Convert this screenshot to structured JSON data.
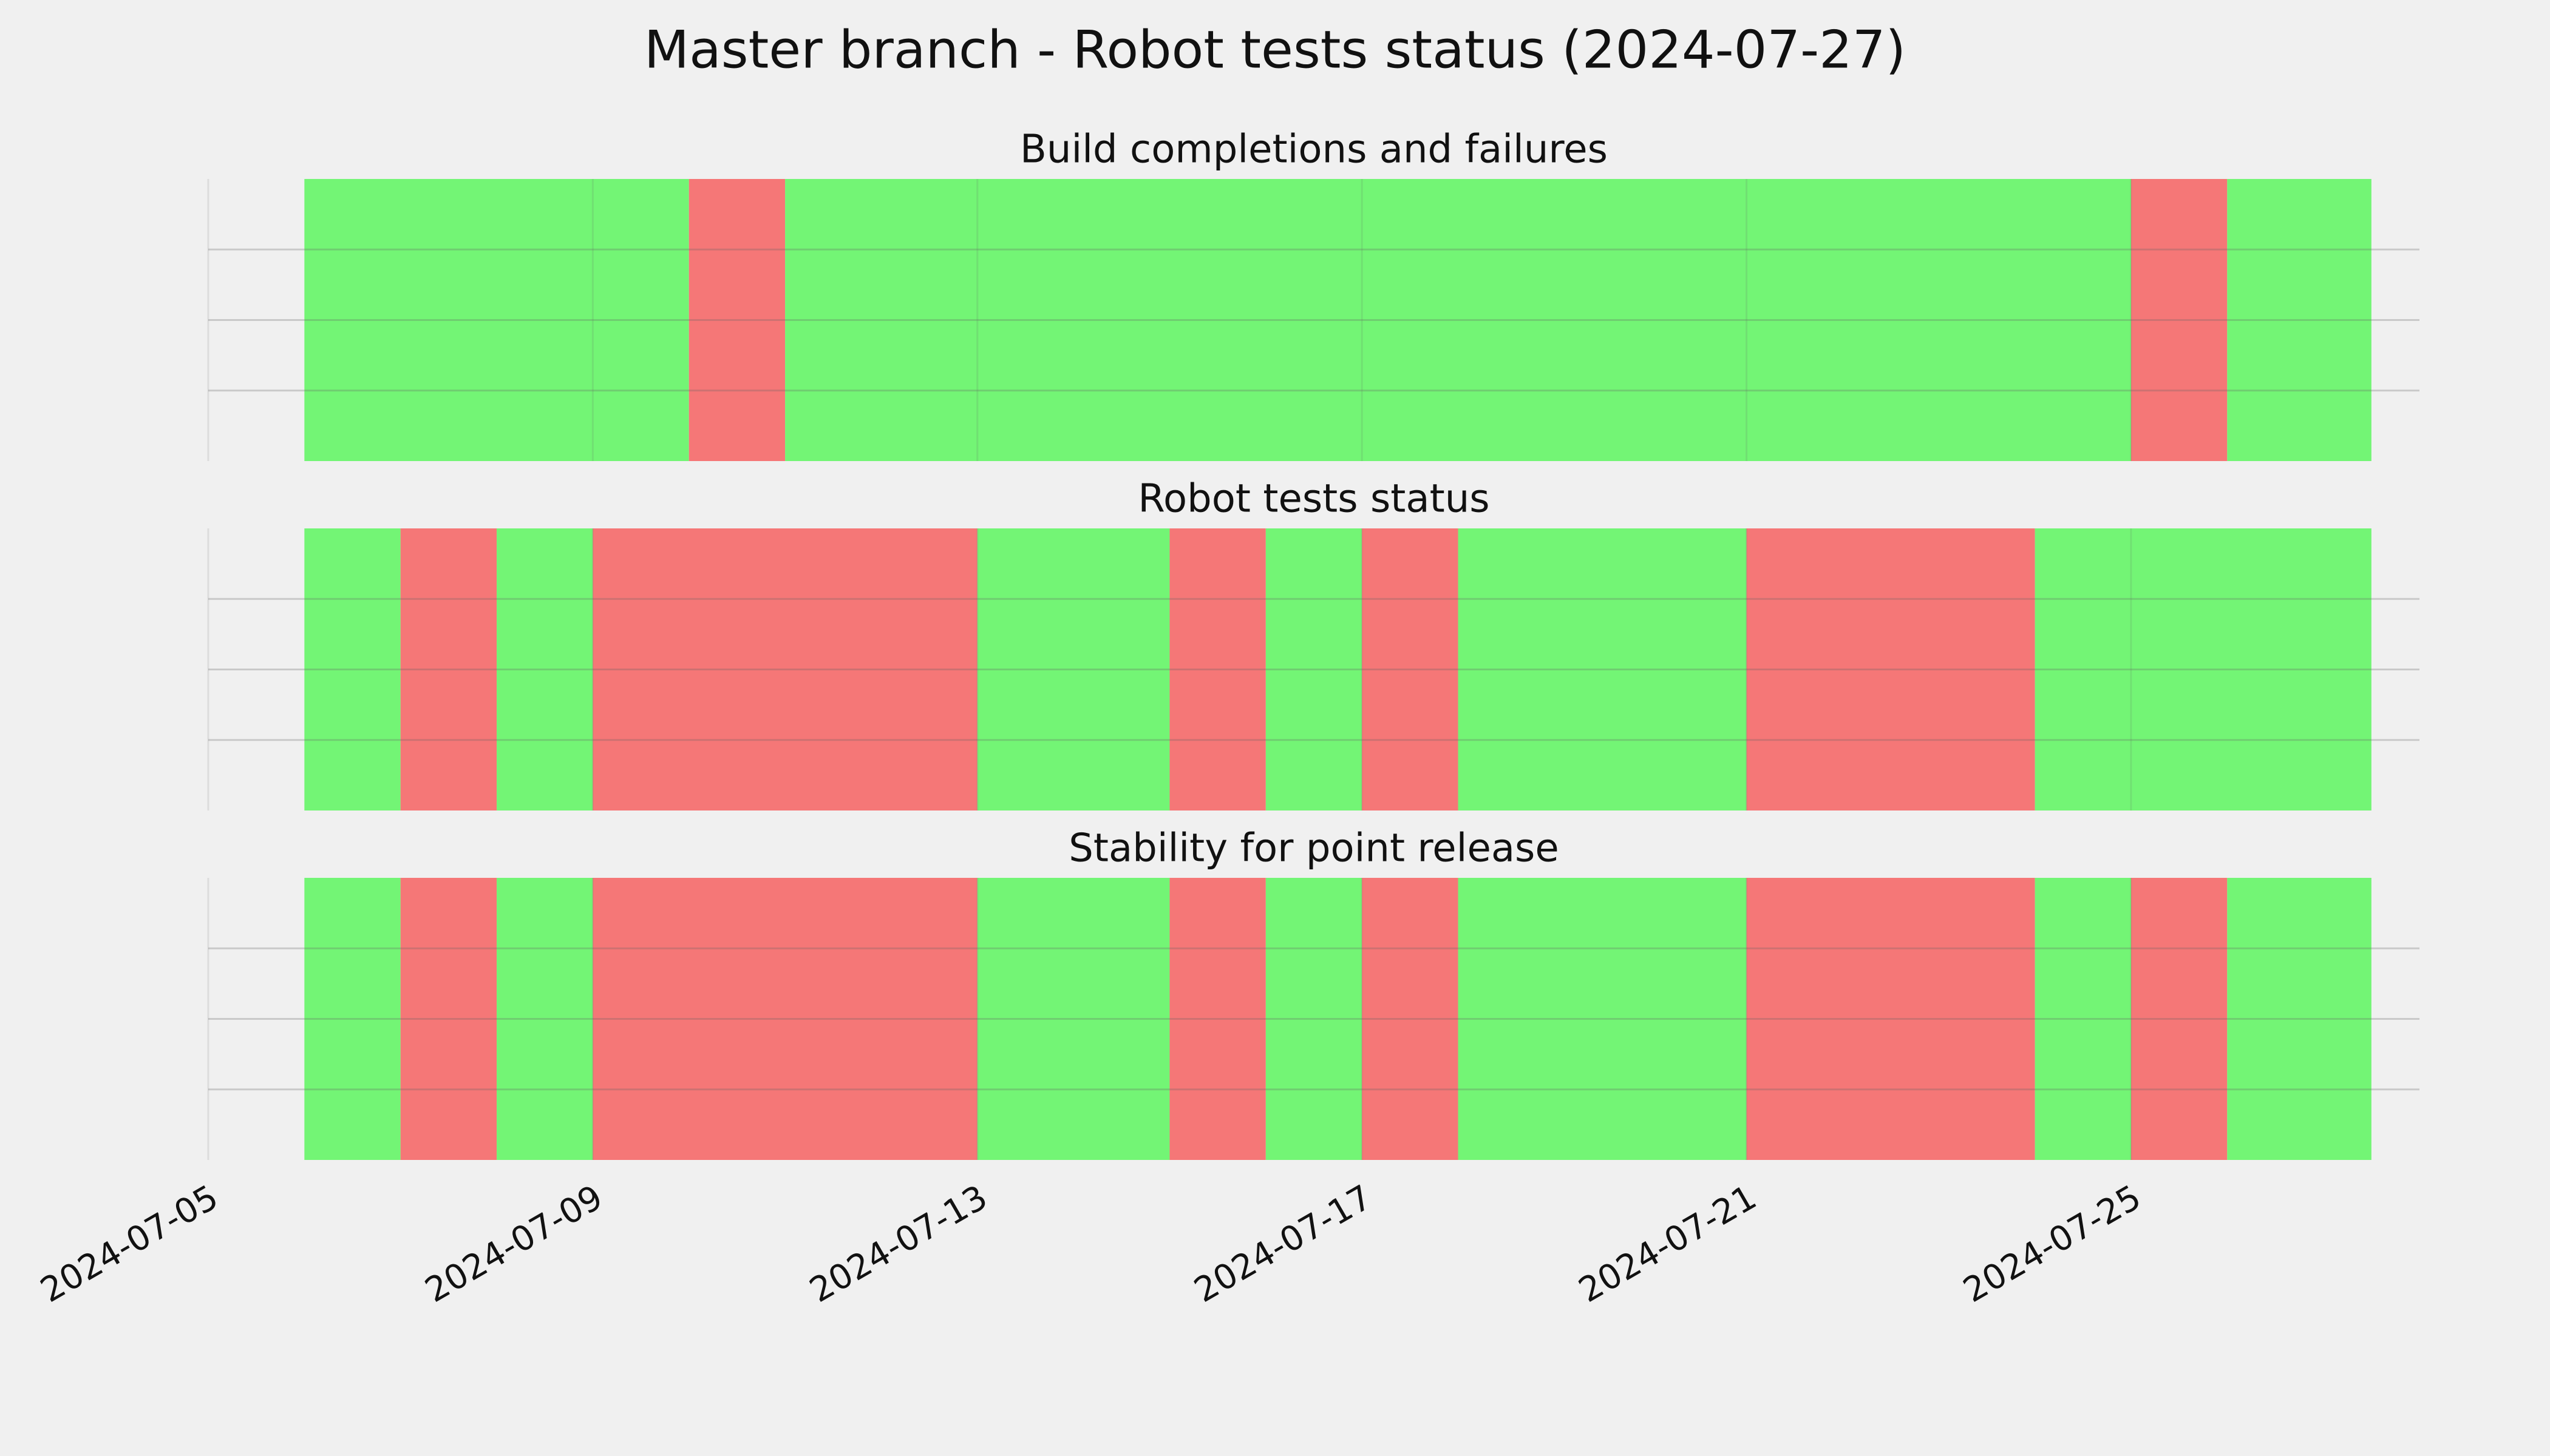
{
  "chart_data": {
    "type": "timeline",
    "title": "Master branch - Robot tests status (2024-07-27)",
    "x_axis": {
      "start": "2024-07-05",
      "end": "2024-07-28",
      "ticks": [
        "2024-07-05",
        "2024-07-09",
        "2024-07-13",
        "2024-07-17",
        "2024-07-21",
        "2024-07-25"
      ],
      "grid": true
    },
    "y_axis": {
      "tick_labels": [],
      "grid": true
    },
    "colors": {
      "success": "#73f575",
      "failure": "#f57777",
      "background": "#f0f0f0",
      "grid": "#cbcbcb"
    },
    "panels": [
      {
        "title": "Build completions and failures",
        "segments": [
          {
            "start": "2024-07-06",
            "end": "2024-07-10",
            "status": "success"
          },
          {
            "start": "2024-07-10",
            "end": "2024-07-11",
            "status": "failure"
          },
          {
            "start": "2024-07-11",
            "end": "2024-07-25",
            "status": "success"
          },
          {
            "start": "2024-07-25",
            "end": "2024-07-26",
            "status": "failure"
          },
          {
            "start": "2024-07-26",
            "end": "2024-07-27.5",
            "status": "success"
          }
        ]
      },
      {
        "title": "Robot tests status",
        "segments": [
          {
            "start": "2024-07-06",
            "end": "2024-07-07",
            "status": "success"
          },
          {
            "start": "2024-07-07",
            "end": "2024-07-08",
            "status": "failure"
          },
          {
            "start": "2024-07-08",
            "end": "2024-07-09",
            "status": "success"
          },
          {
            "start": "2024-07-09",
            "end": "2024-07-13",
            "status": "failure"
          },
          {
            "start": "2024-07-13",
            "end": "2024-07-15",
            "status": "success"
          },
          {
            "start": "2024-07-15",
            "end": "2024-07-16",
            "status": "failure"
          },
          {
            "start": "2024-07-16",
            "end": "2024-07-17",
            "status": "success"
          },
          {
            "start": "2024-07-17",
            "end": "2024-07-18",
            "status": "failure"
          },
          {
            "start": "2024-07-18",
            "end": "2024-07-21",
            "status": "success"
          },
          {
            "start": "2024-07-21",
            "end": "2024-07-24",
            "status": "failure"
          },
          {
            "start": "2024-07-24",
            "end": "2024-07-27.5",
            "status": "success"
          }
        ]
      },
      {
        "title": "Stability for point release",
        "segments": [
          {
            "start": "2024-07-06",
            "end": "2024-07-07",
            "status": "success"
          },
          {
            "start": "2024-07-07",
            "end": "2024-07-08",
            "status": "failure"
          },
          {
            "start": "2024-07-08",
            "end": "2024-07-09",
            "status": "success"
          },
          {
            "start": "2024-07-09",
            "end": "2024-07-13",
            "status": "failure"
          },
          {
            "start": "2024-07-13",
            "end": "2024-07-15",
            "status": "success"
          },
          {
            "start": "2024-07-15",
            "end": "2024-07-16",
            "status": "failure"
          },
          {
            "start": "2024-07-16",
            "end": "2024-07-17",
            "status": "success"
          },
          {
            "start": "2024-07-17",
            "end": "2024-07-18",
            "status": "failure"
          },
          {
            "start": "2024-07-18",
            "end": "2024-07-21",
            "status": "success"
          },
          {
            "start": "2024-07-21",
            "end": "2024-07-24",
            "status": "failure"
          },
          {
            "start": "2024-07-24",
            "end": "2024-07-25",
            "status": "success"
          },
          {
            "start": "2024-07-25",
            "end": "2024-07-26",
            "status": "failure"
          },
          {
            "start": "2024-07-26",
            "end": "2024-07-27.5",
            "status": "success"
          }
        ]
      }
    ]
  }
}
